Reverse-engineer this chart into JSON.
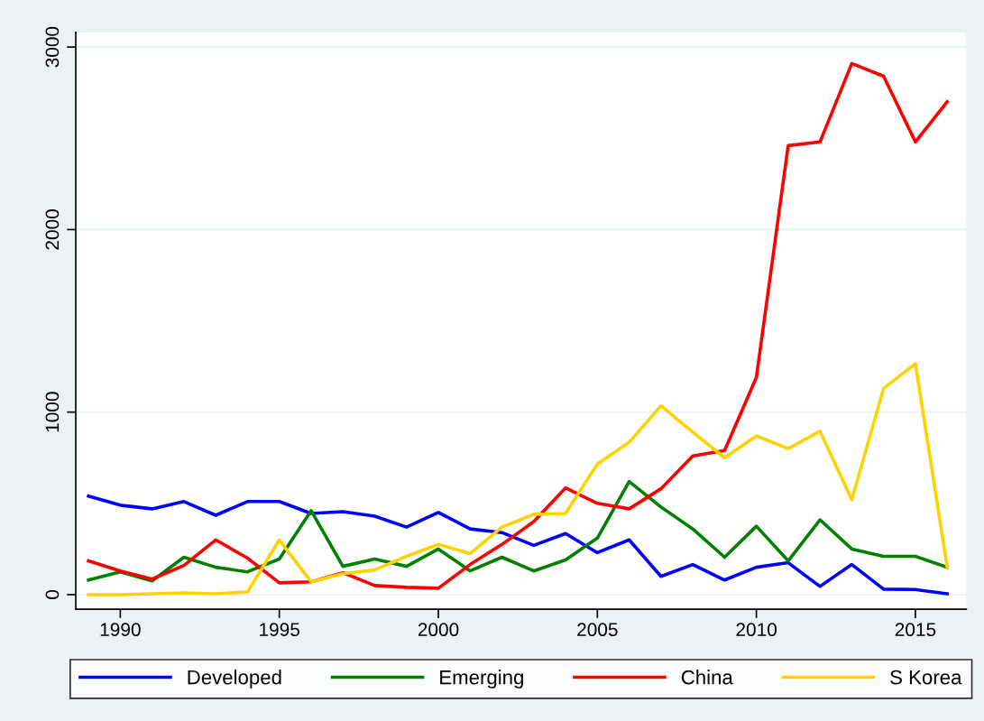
{
  "chart_data": {
    "type": "line",
    "x": [
      1989,
      1990,
      1991,
      1992,
      1993,
      1994,
      1995,
      1996,
      1997,
      1998,
      1999,
      2000,
      2001,
      2002,
      2003,
      2004,
      2005,
      2006,
      2007,
      2008,
      2009,
      2010,
      2011,
      2012,
      2013,
      2014,
      2015,
      2016
    ],
    "series": [
      {
        "name": "Developed",
        "color": "#0000ff",
        "values": [
          540,
          490,
          470,
          510,
          435,
          510,
          510,
          445,
          455,
          430,
          370,
          450,
          360,
          340,
          270,
          335,
          230,
          300,
          100,
          165,
          80,
          150,
          175,
          45,
          165,
          30,
          28,
          5
        ]
      },
      {
        "name": "Emerging",
        "color": "#008000",
        "values": [
          80,
          125,
          75,
          205,
          150,
          125,
          195,
          460,
          155,
          195,
          155,
          250,
          130,
          205,
          130,
          190,
          310,
          620,
          480,
          360,
          205,
          375,
          185,
          410,
          250,
          210,
          210,
          150
        ]
      },
      {
        "name": "China",
        "color": "#ff0000",
        "values": [
          185,
          130,
          85,
          160,
          300,
          200,
          65,
          70,
          120,
          50,
          40,
          35,
          165,
          275,
          400,
          585,
          500,
          470,
          580,
          760,
          790,
          1190,
          2460,
          2480,
          2910,
          2840,
          2480,
          2700
        ]
      },
      {
        "name": "S Korea",
        "color": "#ffd200",
        "values": [
          0,
          0,
          5,
          10,
          5,
          15,
          300,
          70,
          115,
          135,
          210,
          275,
          225,
          370,
          440,
          445,
          715,
          835,
          1035,
          890,
          750,
          870,
          800,
          895,
          520,
          1130,
          1265,
          150
        ]
      }
    ],
    "xlim": [
      1988.6,
      2016.6
    ],
    "xticks": [
      1990,
      1995,
      2000,
      2005,
      2010,
      2015
    ],
    "ylim": [
      -80,
      3080
    ],
    "yticks": [
      0,
      1000,
      2000,
      3000
    ],
    "grid": "y",
    "legend": "bottom",
    "marker": "none",
    "line_style": "solid"
  }
}
